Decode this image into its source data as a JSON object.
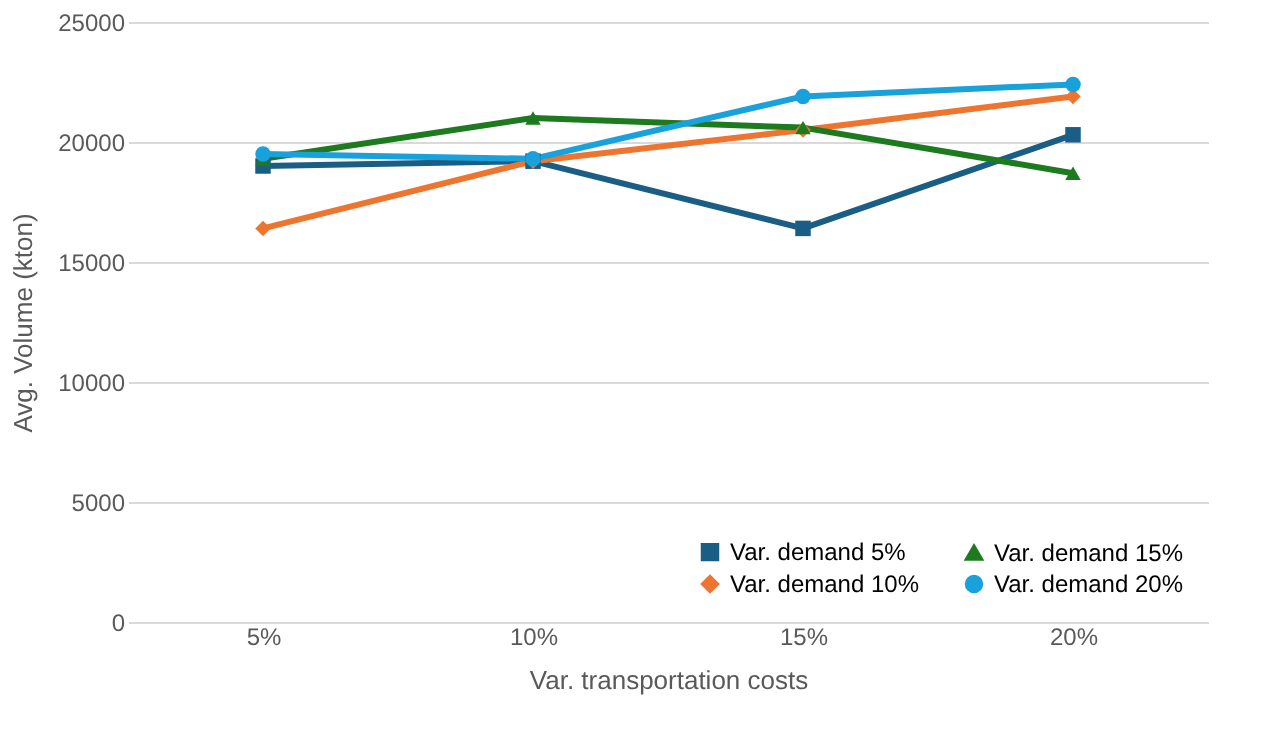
{
  "chart_data": {
    "type": "line",
    "xlabel": "Var. transportation costs",
    "ylabel": "Avg. Volume (kton)",
    "categories": [
      "5%",
      "10%",
      "15%",
      "20%"
    ],
    "ylim": [
      0,
      25000
    ],
    "yticks": [
      0,
      5000,
      10000,
      15000,
      20000,
      25000
    ],
    "grid": "y",
    "legend": "bottom right",
    "series": [
      {
        "name": "Var. demand 5%",
        "color": "#1b5e85",
        "marker": "square",
        "values": [
          19000,
          19200,
          16400,
          20300
        ]
      },
      {
        "name": "Var. demand 10%",
        "color": "#ee7530",
        "marker": "diamond",
        "values": [
          16400,
          19200,
          20500,
          21900
        ]
      },
      {
        "name": "Var. demand 15%",
        "color": "#1e7a1e",
        "marker": "triangle",
        "values": [
          19300,
          21000,
          20600,
          18700
        ]
      },
      {
        "name": "Var. demand 20%",
        "color": "#19a1dc",
        "marker": "circle",
        "values": [
          19500,
          19300,
          21900,
          22400
        ]
      }
    ]
  }
}
